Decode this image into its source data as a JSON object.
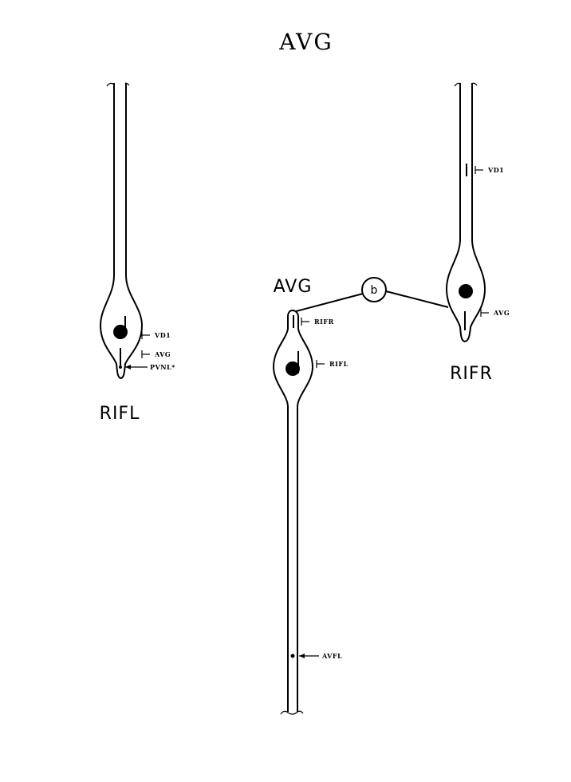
{
  "title": "AVG",
  "cells": {
    "rifl": {
      "name": "RIFL",
      "labels": {
        "vd1": "VD1",
        "avg": "AVG",
        "pvnl": "PVNL*"
      }
    },
    "avg": {
      "name": "AVG",
      "labels": {
        "rifr": "RIFR",
        "rifl": "RIFL",
        "avfl": "AVFL"
      }
    },
    "rifr": {
      "name": "RIFR",
      "labels": {
        "vd1": "VD1",
        "avg": "AVG"
      }
    }
  },
  "junction": {
    "label": "b"
  }
}
